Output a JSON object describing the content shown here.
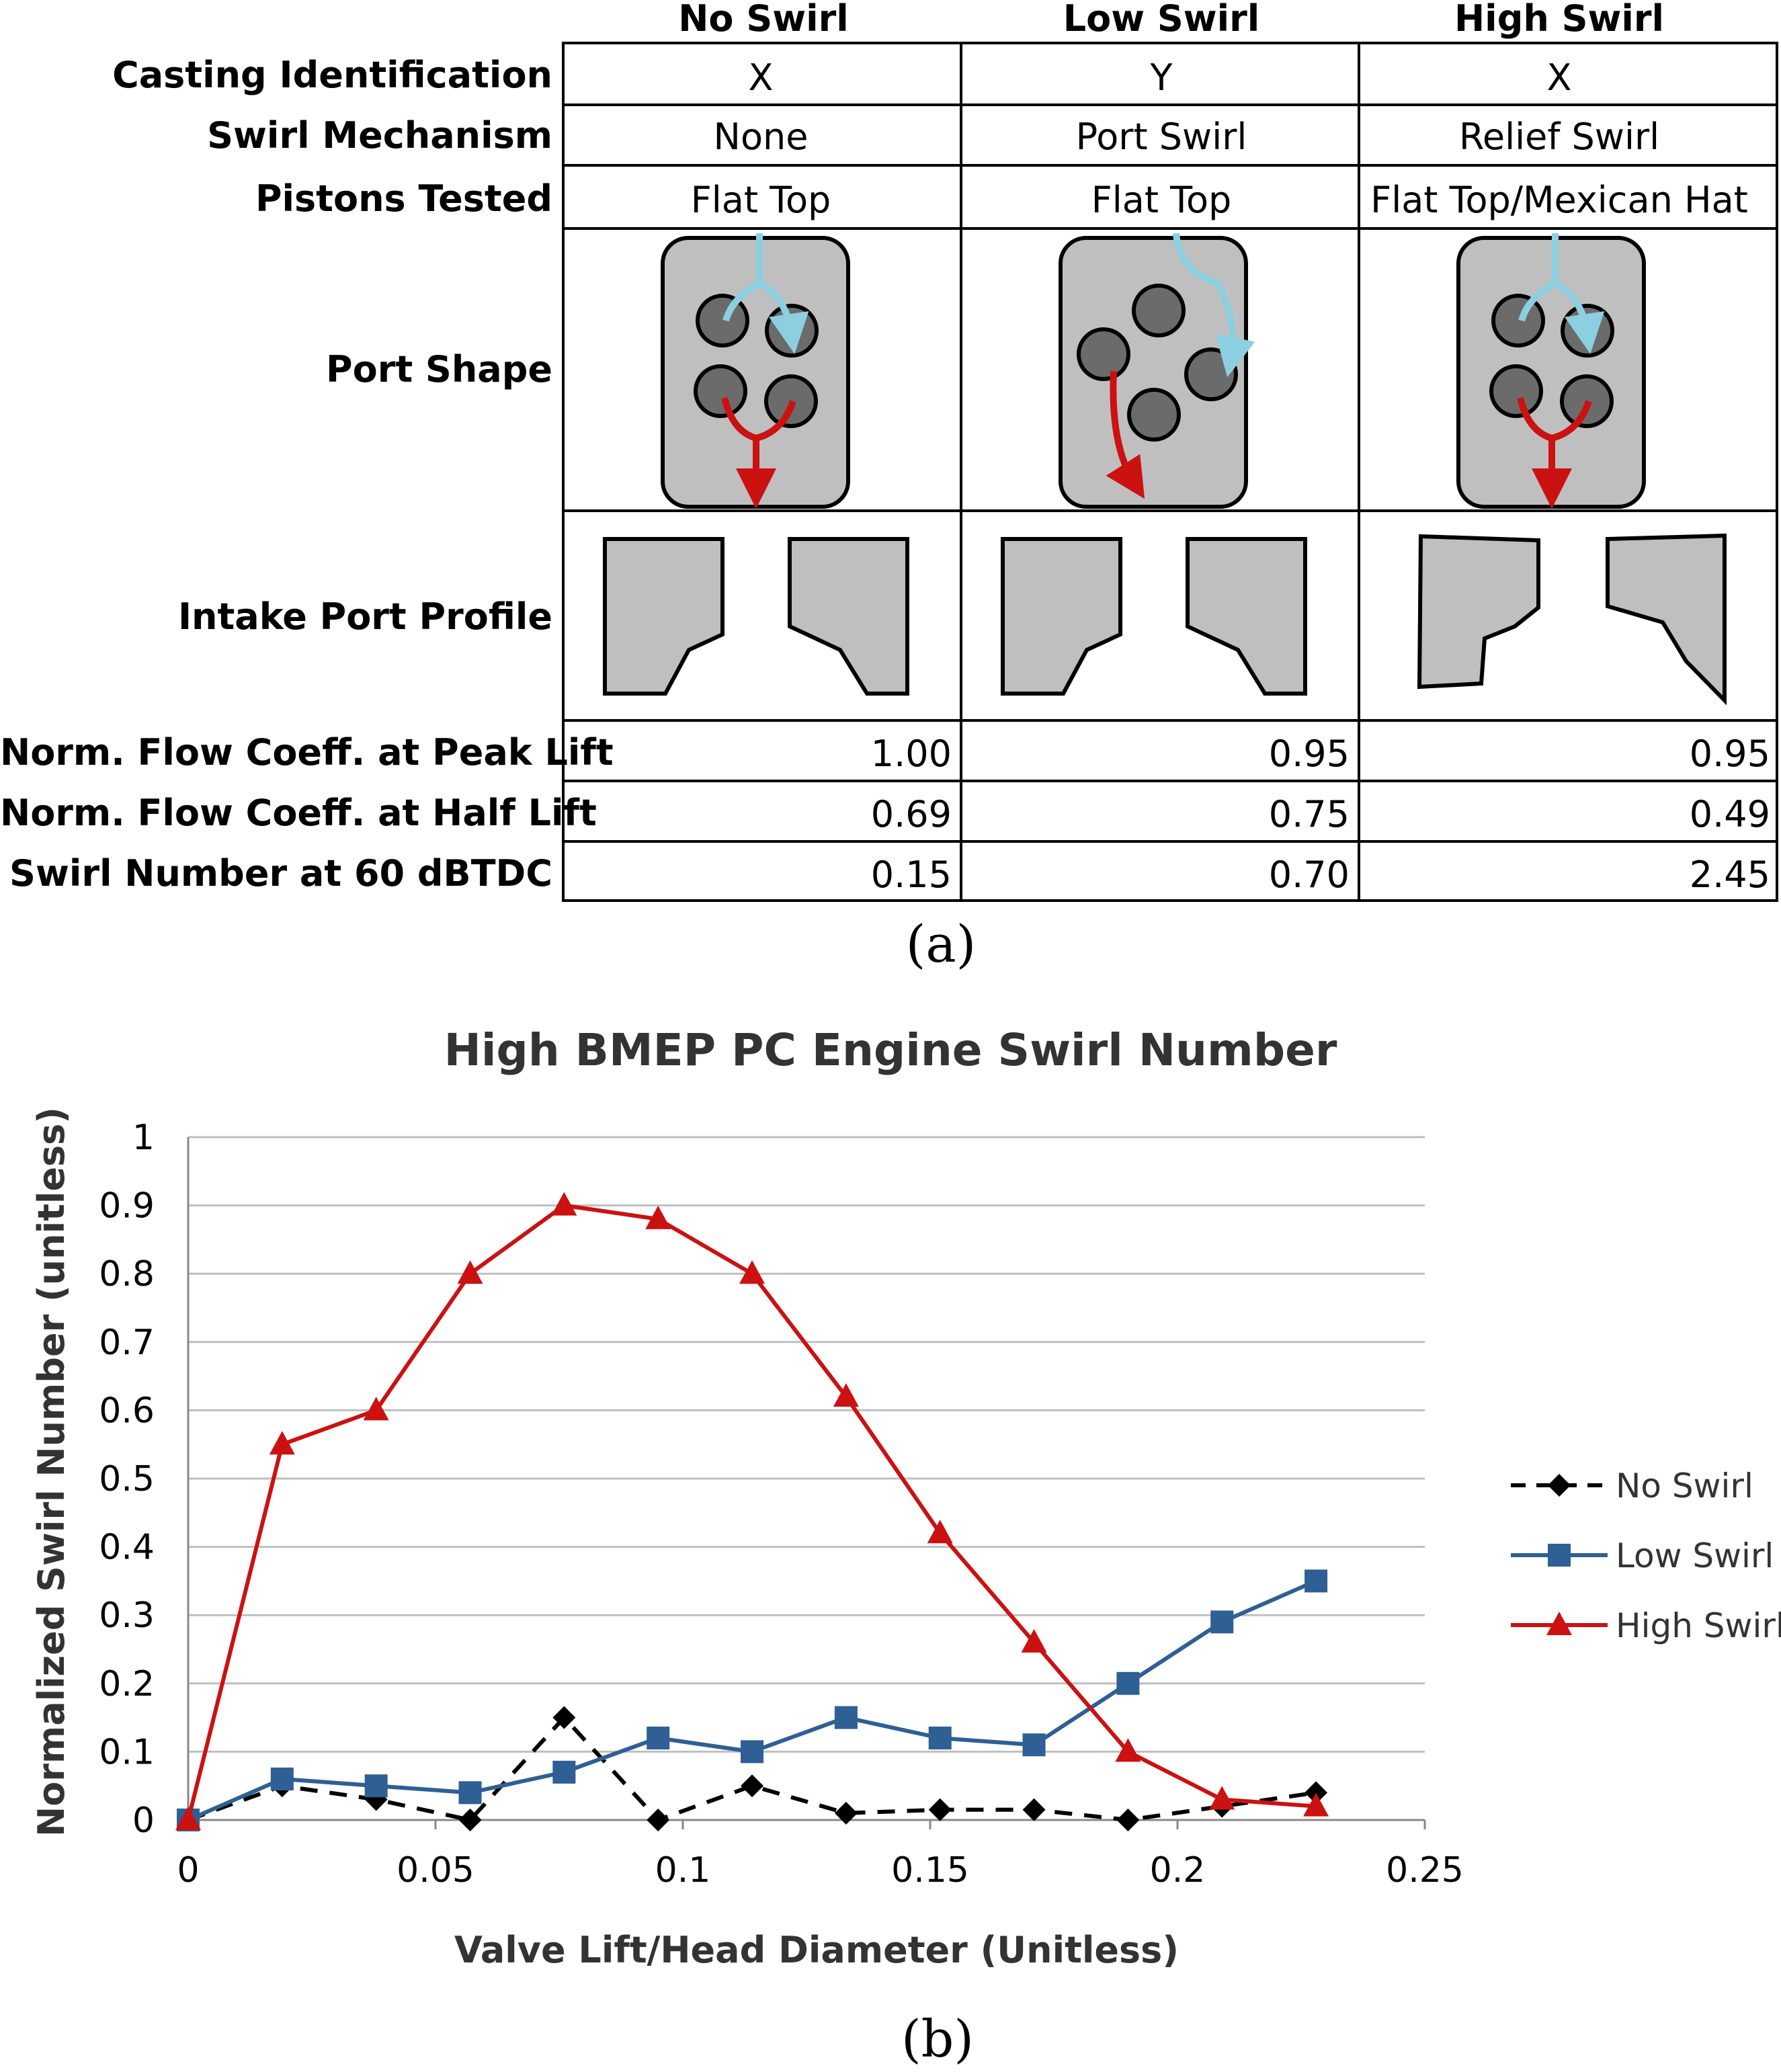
{
  "table": {
    "columns": [
      "No Swirl",
      "Low Swirl",
      "High Swirl"
    ],
    "rows": [
      {
        "label": "Casting Identification",
        "values": [
          "X",
          "Y",
          "X"
        ]
      },
      {
        "label": "Swirl Mechanism",
        "values": [
          "None",
          "Port Swirl",
          "Relief Swirl"
        ]
      },
      {
        "label": "Pistons Tested",
        "values": [
          "Flat Top",
          "Flat Top",
          "Flat Top/Mexican Hat"
        ]
      },
      {
        "label": "Port Shape",
        "values": []
      },
      {
        "label": "Intake Port Profile",
        "values": []
      },
      {
        "label": "Norm. Flow Coeff. at Peak Lift",
        "values": [
          "1.00",
          "0.95",
          "0.95"
        ]
      },
      {
        "label": "Norm. Flow Coeff. at Half Lift",
        "values": [
          "0.69",
          "0.75",
          "0.49"
        ]
      },
      {
        "label": "Swirl Number at 60 dBTDC",
        "values": [
          "0.15",
          "0.70",
          "2.45"
        ]
      }
    ],
    "colors": {
      "port_fill": "#bfbfbf",
      "valve_fill": "#6b6b6b",
      "intake_arrow": "#8ccfe0",
      "exhaust_arrow": "#cc1111"
    }
  },
  "captions": {
    "a": "(a)",
    "b": "(b)"
  },
  "chart_data": {
    "type": "line",
    "title": "High BMEP PC Engine Swirl Number",
    "xlabel": "Valve Lift/Head Diameter (Unitless)",
    "ylabel": "Normalized Swirl Number (unitless)",
    "xlim": [
      0,
      0.25
    ],
    "ylim": [
      0,
      1
    ],
    "x_ticks": [
      "0",
      "0.05",
      "0.1",
      "0.15",
      "0.2",
      "0.25"
    ],
    "y_ticks": [
      "0",
      "0.1",
      "0.2",
      "0.3",
      "0.4",
      "0.5",
      "0.6",
      "0.7",
      "0.8",
      "0.9",
      "1"
    ],
    "grid": "horizontal",
    "legend_position": "right",
    "series": [
      {
        "name": "No Swirl",
        "color": "#000000",
        "dash": true,
        "marker": "diamond",
        "x": [
          0,
          0.019,
          0.038,
          0.057,
          0.076,
          0.095,
          0.114,
          0.133,
          0.152,
          0.171,
          0.19,
          0.209,
          0.228
        ],
        "y": [
          0,
          0.05,
          0.03,
          0.0,
          0.15,
          0.0,
          0.05,
          0.01,
          0.015,
          0.015,
          0.0,
          0.02,
          0.04
        ]
      },
      {
        "name": "Low Swirl",
        "color": "#2e5f95",
        "dash": false,
        "marker": "square",
        "x": [
          0,
          0.019,
          0.038,
          0.057,
          0.076,
          0.095,
          0.114,
          0.133,
          0.152,
          0.171,
          0.19,
          0.209,
          0.228
        ],
        "y": [
          0,
          0.06,
          0.05,
          0.04,
          0.07,
          0.12,
          0.1,
          0.15,
          0.12,
          0.11,
          0.2,
          0.29,
          0.35
        ]
      },
      {
        "name": "High Swirl",
        "color": "#cc1111",
        "dash": false,
        "marker": "triangle",
        "x": [
          0,
          0.019,
          0.038,
          0.057,
          0.076,
          0.095,
          0.114,
          0.133,
          0.152,
          0.171,
          0.19,
          0.209,
          0.228
        ],
        "y": [
          0,
          0.55,
          0.6,
          0.8,
          0.9,
          0.88,
          0.8,
          0.62,
          0.42,
          0.26,
          0.1,
          0.03,
          0.02
        ]
      }
    ]
  }
}
